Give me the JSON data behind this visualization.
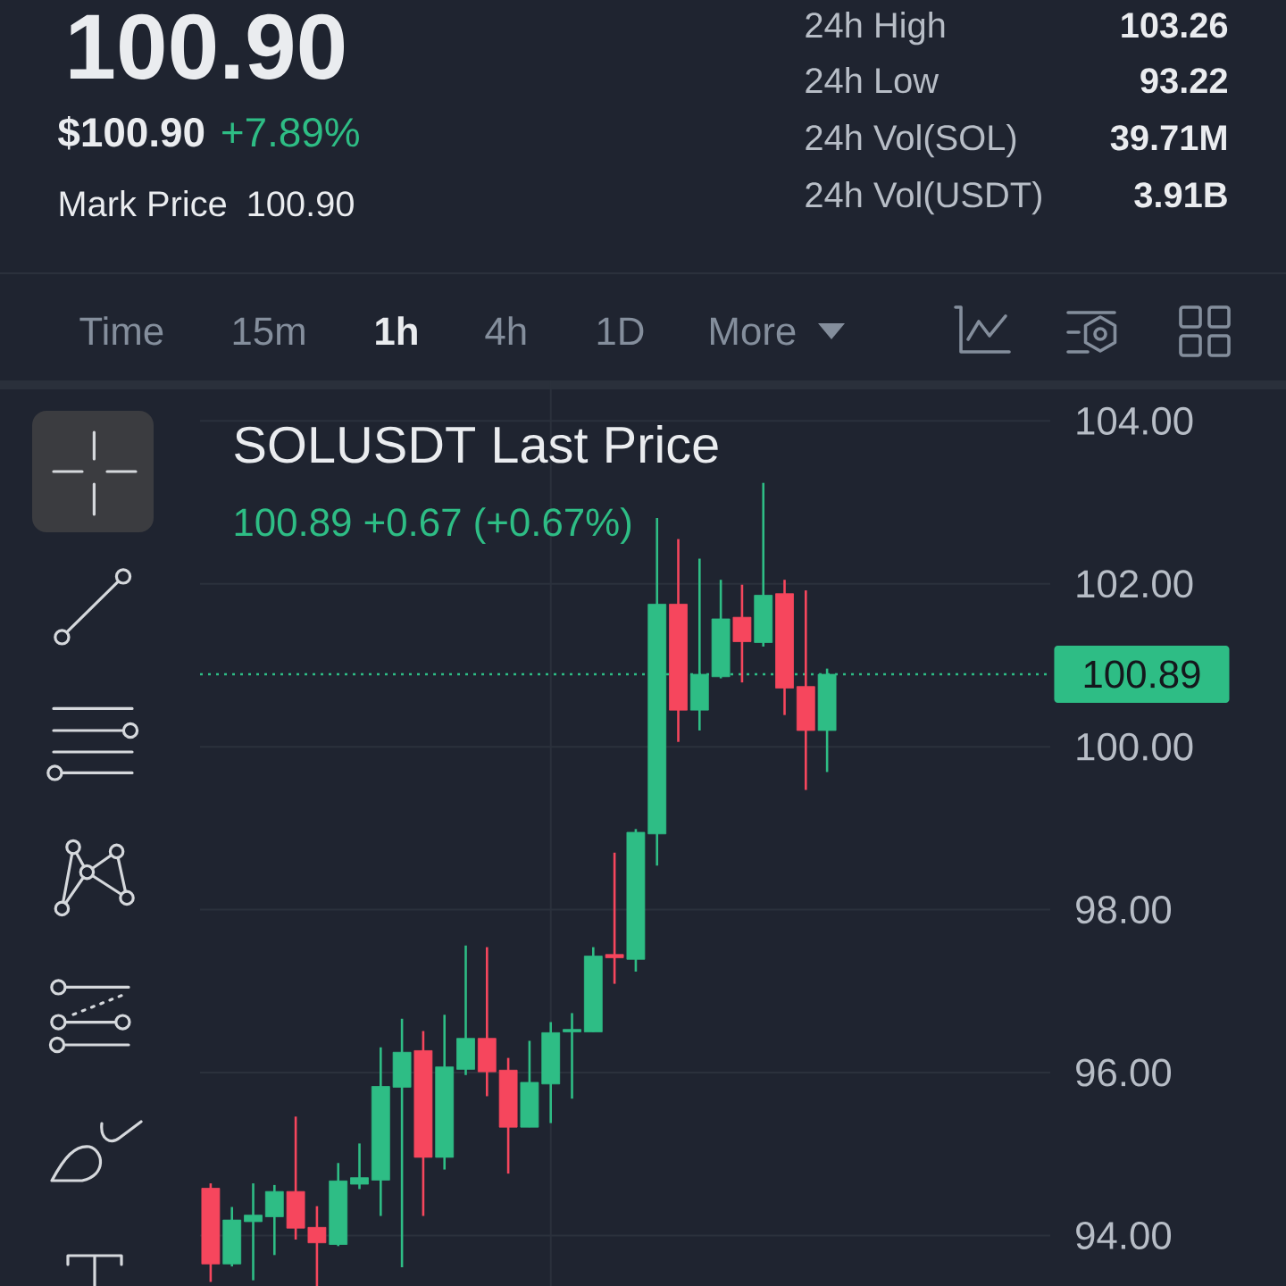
{
  "chart_data": {
    "type": "candlestick",
    "title": "SOLUSDT Last Price",
    "subtitle": "100.89 +0.67 (+0.67%)",
    "annotations": [
      "100.90",
      "$100.90",
      "+7.89%",
      "Mark Price",
      "100.90",
      "24h High",
      "103.26",
      "24h Low",
      "93.22",
      "24h Vol(SOL)",
      "39.71M",
      "24h Vol(USDT)",
      "3.91B",
      "Time",
      "15m",
      "1h",
      "4h",
      "1D",
      "More"
    ],
    "categories": [
      null,
      null,
      null,
      null,
      null,
      null,
      null,
      null,
      null,
      null,
      null,
      null,
      null,
      null,
      null,
      null,
      null,
      null,
      null,
      null,
      null,
      null,
      null,
      null,
      null,
      null,
      null,
      null,
      null,
      null,
      null,
      null,
      null,
      null,
      null,
      null,
      null,
      null,
      null,
      null
    ],
    "ohlc": [
      [
        94.58,
        94.64,
        93.43,
        93.65
      ],
      [
        93.65,
        94.35,
        93.62,
        94.19
      ],
      [
        94.17,
        94.64,
        93.45,
        94.25
      ],
      [
        94.23,
        94.62,
        93.76,
        94.54
      ],
      [
        94.54,
        95.46,
        93.95,
        94.09
      ],
      [
        94.1,
        94.36,
        93.38,
        93.91
      ],
      [
        93.89,
        94.89,
        93.87,
        94.67
      ],
      [
        94.63,
        95.13,
        94.57,
        94.71
      ],
      [
        94.68,
        96.31,
        94.24,
        95.83
      ],
      [
        95.82,
        96.66,
        93.61,
        96.25
      ],
      [
        96.27,
        96.51,
        94.24,
        94.96
      ],
      [
        94.96,
        96.71,
        94.81,
        96.07
      ],
      [
        96.04,
        97.56,
        95.97,
        96.42
      ],
      [
        96.42,
        97.54,
        95.71,
        96.01
      ],
      [
        96.03,
        96.18,
        94.76,
        95.33
      ],
      [
        95.33,
        96.39,
        95.33,
        95.88
      ],
      [
        95.86,
        96.62,
        95.38,
        96.49
      ],
      [
        96.5,
        96.73,
        95.68,
        96.53
      ],
      [
        96.5,
        97.54,
        96.5,
        97.43
      ],
      [
        97.45,
        98.7,
        97.09,
        97.41
      ],
      [
        97.39,
        98.99,
        97.24,
        98.95
      ],
      [
        98.93,
        102.81,
        98.54,
        101.75
      ],
      [
        101.75,
        102.55,
        100.06,
        100.45
      ],
      [
        100.45,
        102.31,
        100.2,
        100.89
      ],
      [
        100.86,
        102.05,
        100.84,
        101.57
      ],
      [
        101.59,
        101.99,
        100.79,
        101.29
      ],
      [
        101.28,
        103.24,
        101.23,
        101.86
      ],
      [
        101.88,
        102.05,
        100.39,
        100.72
      ],
      [
        100.74,
        101.92,
        99.47,
        100.2
      ],
      [
        100.2,
        100.96,
        99.69,
        100.89
      ],
      null,
      null,
      null,
      null,
      null,
      null,
      null,
      null,
      null,
      null
    ],
    "colors": [
      "#f6465d",
      "#2ebd85",
      "#2ebd85",
      "#2ebd85",
      "#f6465d",
      "#f6465d",
      "#2ebd85",
      "#2ebd85",
      "#2ebd85",
      "#2ebd85",
      "#f6465d",
      "#2ebd85",
      "#2ebd85",
      "#f6465d",
      "#f6465d",
      "#2ebd85",
      "#2ebd85",
      "#2ebd85",
      "#2ebd85",
      "#f6465d",
      "#2ebd85",
      "#2ebd85",
      "#f6465d",
      "#2ebd85",
      "#2ebd85",
      "#f6465d",
      "#2ebd85",
      "#f6465d",
      "#f6465d",
      "#2ebd85",
      null,
      null,
      null,
      null,
      null,
      null,
      null,
      null,
      null,
      null
    ],
    "ylim": [
      93.38,
      104
    ],
    "yticks": [
      {
        "value": 94,
        "label": "94.00"
      },
      {
        "value": 96,
        "label": "96.00"
      },
      {
        "value": 98,
        "label": "98.00"
      },
      {
        "value": 100,
        "label": "100.00"
      },
      {
        "value": 102,
        "label": "102.00"
      },
      {
        "value": 104,
        "label": "104.00"
      }
    ],
    "grid": "y",
    "ref_lines": [
      {
        "axis": "y",
        "value": 100.89,
        "label": "100.89",
        "color": "#2ebd85",
        "line_style": "dotted"
      }
    ]
  }
}
